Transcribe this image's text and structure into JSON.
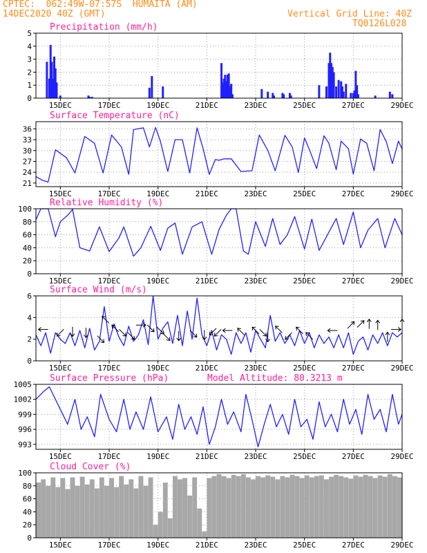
{
  "header": {
    "line1_left": "CPTEC:  062:49W-07:57S  HUMAITA (AM)",
    "line2_left": "14DEC2020 40Z (GMT)",
    "grid_note": "Vertical Grid Line: 40Z",
    "code": "TQ0126L028",
    "altitude_note": "Model Altitude: 80.3213 m"
  },
  "colors": {
    "header": "#ff8c1a",
    "title": "#ff1f9a",
    "line": "#2020ff",
    "bar": "#2020ff",
    "cloud": "#a8a8a8",
    "grid": "#9a9a9a",
    "arrow": "#000000"
  },
  "chart_data": [
    {
      "type": "bar",
      "title": "Precipitation (mm/h)",
      "ylim": [
        0,
        5
      ],
      "yticks": [
        0,
        1,
        2,
        3,
        4,
        5
      ],
      "xlim": [
        14.0,
        29.0
      ],
      "xticks": [
        "15DEC",
        "17DEC",
        "19DEC",
        "21DEC",
        "23DEC",
        "25DEC",
        "27DEC",
        "29DEC"
      ],
      "x": [
        14.45,
        14.55,
        14.6,
        14.65,
        14.7,
        14.75,
        14.8,
        14.85,
        15.0,
        16.15,
        16.2,
        16.3,
        18.65,
        18.75,
        19.2,
        21.6,
        21.65,
        21.7,
        21.75,
        21.8,
        21.85,
        21.9,
        21.95,
        22.0,
        22.05,
        23.25,
        23.5,
        23.7,
        23.75,
        24.1,
        24.15,
        24.4,
        24.45,
        25.6,
        25.9,
        26.0,
        26.05,
        26.1,
        26.15,
        26.2,
        26.3,
        26.4,
        26.5,
        26.55,
        26.6,
        26.7,
        26.9,
        27.0,
        27.05,
        27.1,
        27.15,
        27.2,
        27.9,
        28.5,
        28.6
      ],
      "values": [
        2.8,
        1.5,
        4.1,
        2.8,
        1.5,
        3.2,
        2.3,
        1.2,
        0.2,
        0.2,
        0.1,
        0.1,
        0.8,
        1.7,
        0.9,
        2.7,
        1.2,
        1.5,
        1.8,
        1.3,
        1.8,
        1.9,
        0.9,
        1.1,
        0.3,
        0.7,
        0.5,
        0.4,
        0.2,
        0.4,
        0.3,
        0.4,
        0.2,
        1.0,
        0.9,
        2.7,
        3.5,
        2.7,
        2.4,
        2.0,
        0.9,
        1.4,
        1.3,
        0.9,
        0.5,
        1.1,
        0.4,
        0.4,
        0.6,
        2.1,
        1.0,
        0.3,
        0.2,
        0.5,
        0.3
      ]
    },
    {
      "type": "line",
      "title": "Surface Temperature (nC)",
      "ylim": [
        20,
        38
      ],
      "yticks": [
        21,
        24,
        27,
        30,
        33,
        36
      ],
      "xlim": [
        14.0,
        29.0
      ],
      "xticks": [
        "15DEC",
        "17DEC",
        "19DEC",
        "21DEC",
        "23DEC",
        "25DEC",
        "27DEC",
        "29DEC"
      ],
      "x": [
        14.0,
        14.25,
        14.5,
        14.8,
        15.25,
        15.6,
        16.0,
        16.4,
        16.75,
        17.1,
        17.5,
        17.8,
        18.0,
        18.4,
        18.65,
        18.9,
        19.1,
        19.4,
        19.7,
        20.0,
        20.3,
        20.6,
        20.85,
        21.1,
        21.35,
        21.5,
        21.7,
        22.0,
        22.4,
        22.85,
        23.15,
        23.5,
        23.8,
        24.2,
        24.5,
        24.75,
        25.0,
        25.2,
        25.5,
        25.8,
        26.0,
        26.3,
        26.5,
        26.8,
        27.0,
        27.3,
        27.55,
        27.85,
        28.1,
        28.35,
        28.6,
        28.85,
        29.0
      ],
      "values": [
        22.8,
        21.8,
        21.3,
        30.2,
        28.0,
        23.8,
        33.9,
        32.0,
        23.8,
        34.3,
        31.0,
        23.4,
        35.8,
        36.3,
        31.0,
        36.4,
        32.5,
        24.2,
        33.0,
        33.0,
        23.8,
        36.3,
        30.5,
        23.4,
        27.5,
        27.3,
        27.7,
        27.7,
        24.2,
        24.4,
        34.3,
        30.0,
        24.4,
        34.2,
        31.0,
        23.9,
        33.5,
        30.3,
        25.0,
        34.1,
        32.0,
        24.7,
        32.6,
        30.5,
        23.5,
        33.2,
        32.0,
        24.4,
        35.8,
        32.5,
        26.4,
        32.6,
        30.4
      ]
    },
    {
      "type": "line",
      "title": "Relative Humidity (%)",
      "ylim": [
        0,
        100
      ],
      "yticks": [
        0,
        20,
        40,
        60,
        80,
        100
      ],
      "xlim": [
        14.0,
        29.0
      ],
      "xticks": [
        "15DEC",
        "17DEC",
        "19DEC",
        "21DEC",
        "23DEC",
        "25DEC",
        "27DEC",
        "29DEC"
      ],
      "x": [
        14.0,
        14.2,
        14.5,
        14.8,
        15.0,
        15.3,
        15.5,
        15.8,
        16.2,
        16.6,
        17.0,
        17.4,
        17.6,
        18.0,
        18.3,
        18.7,
        19.1,
        19.4,
        19.7,
        20.0,
        20.4,
        20.8,
        21.2,
        21.5,
        21.8,
        22.0,
        22.2,
        22.5,
        22.7,
        23.0,
        23.4,
        23.7,
        24.0,
        24.3,
        24.6,
        25.0,
        25.3,
        25.6,
        25.9,
        26.3,
        26.6,
        27.0,
        27.3,
        27.6,
        28.0,
        28.3,
        28.7,
        29.0
      ],
      "values": [
        83,
        100,
        100,
        57,
        80,
        90,
        99,
        40,
        35,
        72,
        34,
        55,
        72,
        27,
        40,
        73,
        36,
        70,
        78,
        30,
        72,
        80,
        30,
        68,
        90,
        100,
        100,
        35,
        30,
        80,
        42,
        85,
        45,
        60,
        88,
        38,
        84,
        36,
        57,
        85,
        45,
        95,
        40,
        67,
        85,
        40,
        85,
        60
      ]
    },
    {
      "type": "line",
      "title": "Surface Wind (m/s)",
      "ylim": [
        0,
        6
      ],
      "yticks": [
        0,
        2,
        4,
        6
      ],
      "xlim": [
        14.0,
        29.0
      ],
      "xticks": [
        "15DEC",
        "17DEC",
        "19DEC",
        "21DEC",
        "23DEC",
        "25DEC",
        "27DEC",
        "29DEC"
      ],
      "x": [
        14.0,
        14.2,
        14.4,
        14.6,
        14.8,
        15.0,
        15.2,
        15.4,
        15.6,
        15.8,
        16.0,
        16.2,
        16.4,
        16.6,
        16.8,
        17.0,
        17.2,
        17.4,
        17.6,
        17.8,
        18.0,
        18.2,
        18.4,
        18.6,
        18.8,
        19.0,
        19.2,
        19.4,
        19.6,
        19.8,
        20.0,
        20.2,
        20.4,
        20.6,
        20.8,
        21.0,
        21.2,
        21.4,
        21.6,
        21.8,
        22.0,
        22.2,
        22.4,
        22.6,
        22.8,
        23.0,
        23.2,
        23.4,
        23.6,
        23.8,
        24.0,
        24.2,
        24.4,
        24.6,
        24.8,
        25.0,
        25.2,
        25.4,
        25.6,
        25.8,
        26.0,
        26.2,
        26.4,
        26.6,
        26.8,
        27.0,
        27.2,
        27.4,
        27.6,
        27.8,
        28.0,
        28.2,
        28.4,
        28.6,
        28.8,
        29.0
      ],
      "values": [
        2.4,
        1.4,
        2.6,
        0.7,
        2.6,
        2.0,
        1.6,
        2.6,
        1.4,
        2.8,
        1.2,
        3.0,
        1.0,
        1.8,
        5.0,
        1.8,
        3.4,
        2.2,
        1.4,
        3.2,
        1.8,
        2.4,
        3.8,
        1.5,
        6.0,
        2.0,
        3.0,
        3.6,
        1.6,
        4.2,
        1.4,
        4.6,
        2.0,
        5.8,
        2.4,
        1.4,
        2.8,
        1.0,
        2.4,
        2.0,
        0.6,
        2.6,
        1.6,
        2.6,
        0.8,
        2.8,
        2.0,
        1.2,
        4.2,
        1.8,
        2.6,
        1.6,
        2.4,
        1.4,
        2.8,
        1.6,
        2.6,
        1.2,
        2.4,
        1.6,
        2.2,
        1.2,
        2.4,
        1.2,
        2.6,
        0.6,
        1.8,
        2.2,
        1.0,
        2.4,
        1.6,
        2.6,
        1.4,
        2.6,
        2.2,
        2.6
      ],
      "wind_arrows": [
        {
          "x": 14.3,
          "y": 2.9,
          "dir": "left"
        },
        {
          "x": 15.0,
          "y": 2.6,
          "dir": "down-left"
        },
        {
          "x": 15.5,
          "y": 2.7,
          "dir": "down"
        },
        {
          "x": 16.05,
          "y": 2.6,
          "dir": "down"
        },
        {
          "x": 16.65,
          "y": 2.0,
          "dir": "down-right"
        },
        {
          "x": 16.85,
          "y": 3.8,
          "dir": "up-left"
        },
        {
          "x": 17.25,
          "y": 3.0,
          "dir": "up-left"
        },
        {
          "x": 17.55,
          "y": 2.6,
          "dir": "down-right"
        },
        {
          "x": 17.9,
          "y": 2.3,
          "dir": "down-right"
        },
        {
          "x": 18.3,
          "y": 3.3,
          "dir": "right"
        },
        {
          "x": 18.7,
          "y": 3.0,
          "dir": "down-right"
        },
        {
          "x": 19.1,
          "y": 2.8,
          "dir": "down-right"
        },
        {
          "x": 19.35,
          "y": 2.2,
          "dir": "down-right"
        },
        {
          "x": 19.85,
          "y": 2.3,
          "dir": "down"
        },
        {
          "x": 20.45,
          "y": 2.5,
          "dir": "down-right"
        },
        {
          "x": 20.9,
          "y": 2.4,
          "dir": "down"
        },
        {
          "x": 21.25,
          "y": 2.7,
          "dir": "down-left"
        },
        {
          "x": 21.45,
          "y": 2.6,
          "dir": "down-left"
        },
        {
          "x": 21.85,
          "y": 2.8,
          "dir": "left"
        },
        {
          "x": 22.4,
          "y": 2.7,
          "dir": "up-left"
        },
        {
          "x": 23.0,
          "y": 2.8,
          "dir": "up-left"
        },
        {
          "x": 23.3,
          "y": 2.6,
          "dir": "down-right"
        },
        {
          "x": 23.5,
          "y": 2.2,
          "dir": "down"
        },
        {
          "x": 23.95,
          "y": 2.9,
          "dir": "up-left"
        },
        {
          "x": 24.35,
          "y": 2.3,
          "dir": "down-left"
        },
        {
          "x": 24.8,
          "y": 2.8,
          "dir": "up-left"
        },
        {
          "x": 25.2,
          "y": 2.3,
          "dir": "up-left"
        },
        {
          "x": 26.15,
          "y": 2.8,
          "dir": "left"
        },
        {
          "x": 26.9,
          "y": 3.3,
          "dir": "up-right"
        },
        {
          "x": 27.3,
          "y": 3.4,
          "dir": "up-right"
        },
        {
          "x": 27.65,
          "y": 3.4,
          "dir": "up"
        },
        {
          "x": 28.0,
          "y": 3.3,
          "dir": "up"
        },
        {
          "x": 28.4,
          "y": 2.2,
          "dir": "up"
        },
        {
          "x": 28.75,
          "y": 2.9,
          "dir": "right"
        },
        {
          "x": 29.0,
          "y": 3.4,
          "dir": "up"
        }
      ]
    },
    {
      "type": "line",
      "title": "Surface Pressure (hPa)",
      "ylim": [
        992,
        1005
      ],
      "yticks": [
        993,
        996,
        999,
        1002,
        1005
      ],
      "xlim": [
        14.0,
        29.0
      ],
      "xticks": [
        "15DEC",
        "17DEC",
        "19DEC",
        "21DEC",
        "23DEC",
        "25DEC",
        "27DEC",
        "29DEC"
      ],
      "x": [
        14.0,
        14.3,
        14.55,
        15.0,
        15.3,
        15.6,
        15.85,
        16.1,
        16.4,
        16.65,
        17.0,
        17.3,
        17.6,
        17.85,
        18.1,
        18.4,
        18.7,
        19.0,
        19.35,
        19.6,
        19.85,
        20.1,
        20.35,
        20.6,
        20.85,
        21.1,
        21.35,
        21.6,
        21.85,
        22.1,
        22.4,
        22.6,
        22.85,
        23.1,
        23.35,
        23.6,
        23.85,
        24.1,
        24.35,
        24.6,
        24.85,
        25.1,
        25.35,
        25.6,
        25.85,
        26.1,
        26.35,
        26.6,
        26.85,
        27.1,
        27.35,
        27.6,
        27.85,
        28.1,
        28.35,
        28.6,
        28.85,
        29.0
      ],
      "values": [
        1002.0,
        1003.5,
        1004.5,
        1000.0,
        997.0,
        1002.0,
        996.0,
        998.5,
        994.5,
        1003.0,
        998.0,
        995.5,
        1002.0,
        996.0,
        999.5,
        996.0,
        1002.5,
        995.5,
        998.5,
        994.0,
        1001.0,
        996.0,
        998.5,
        995.0,
        1000.5,
        993.0,
        996.5,
        1002.0,
        997.0,
        999.5,
        995.5,
        1003.0,
        998.0,
        992.5,
        997.0,
        1001.0,
        996.5,
        999.0,
        995.0,
        1002.0,
        996.5,
        998.0,
        994.0,
        1001.5,
        996.5,
        999.0,
        995.5,
        1002.0,
        997.0,
        1000.0,
        995.0,
        1003.0,
        998.0,
        1000.0,
        995.5,
        1003.0,
        997.0,
        999.0
      ]
    },
    {
      "type": "bar",
      "title": "Cloud Cover (%)",
      "ylim": [
        0,
        100
      ],
      "yticks": [
        0,
        20,
        40,
        60,
        80,
        100
      ],
      "xlim": [
        14.0,
        29.0
      ],
      "xticks": [
        "15DEC",
        "17DEC",
        "19DEC",
        "21DEC",
        "23DEC",
        "25DEC",
        "27DEC",
        "29DEC"
      ],
      "x": [
        14.1,
        14.3,
        14.5,
        14.7,
        14.9,
        15.1,
        15.3,
        15.5,
        15.7,
        15.9,
        16.1,
        16.3,
        16.5,
        16.7,
        16.9,
        17.1,
        17.3,
        17.5,
        17.7,
        17.9,
        18.1,
        18.3,
        18.5,
        18.7,
        18.9,
        19.1,
        19.3,
        19.5,
        19.7,
        19.9,
        20.1,
        20.3,
        20.5,
        20.7,
        20.9,
        21.1,
        21.3,
        21.5,
        21.7,
        21.9,
        22.1,
        22.3,
        22.5,
        22.7,
        22.9,
        23.1,
        23.3,
        23.5,
        23.7,
        23.9,
        24.1,
        24.3,
        24.5,
        24.7,
        24.9,
        25.1,
        25.3,
        25.5,
        25.7,
        25.9,
        26.1,
        26.3,
        26.5,
        26.7,
        26.9,
        27.1,
        27.3,
        27.5,
        27.7,
        27.9,
        28.1,
        28.3,
        28.5,
        28.7,
        28.9
      ],
      "values": [
        85,
        90,
        80,
        93,
        78,
        92,
        75,
        93,
        80,
        94,
        82,
        90,
        76,
        93,
        80,
        92,
        78,
        95,
        82,
        90,
        76,
        95,
        80,
        93,
        20,
        40,
        85,
        30,
        95,
        90,
        92,
        65,
        93,
        45,
        10,
        92,
        95,
        98,
        95,
        92,
        97,
        95,
        98,
        93,
        90,
        95,
        93,
        96,
        94,
        90,
        95,
        93,
        97,
        95,
        92,
        96,
        93,
        95,
        96,
        90,
        94,
        97,
        95,
        93,
        91,
        96,
        94,
        97,
        95,
        92,
        96,
        94,
        98,
        95,
        93
      ]
    }
  ]
}
